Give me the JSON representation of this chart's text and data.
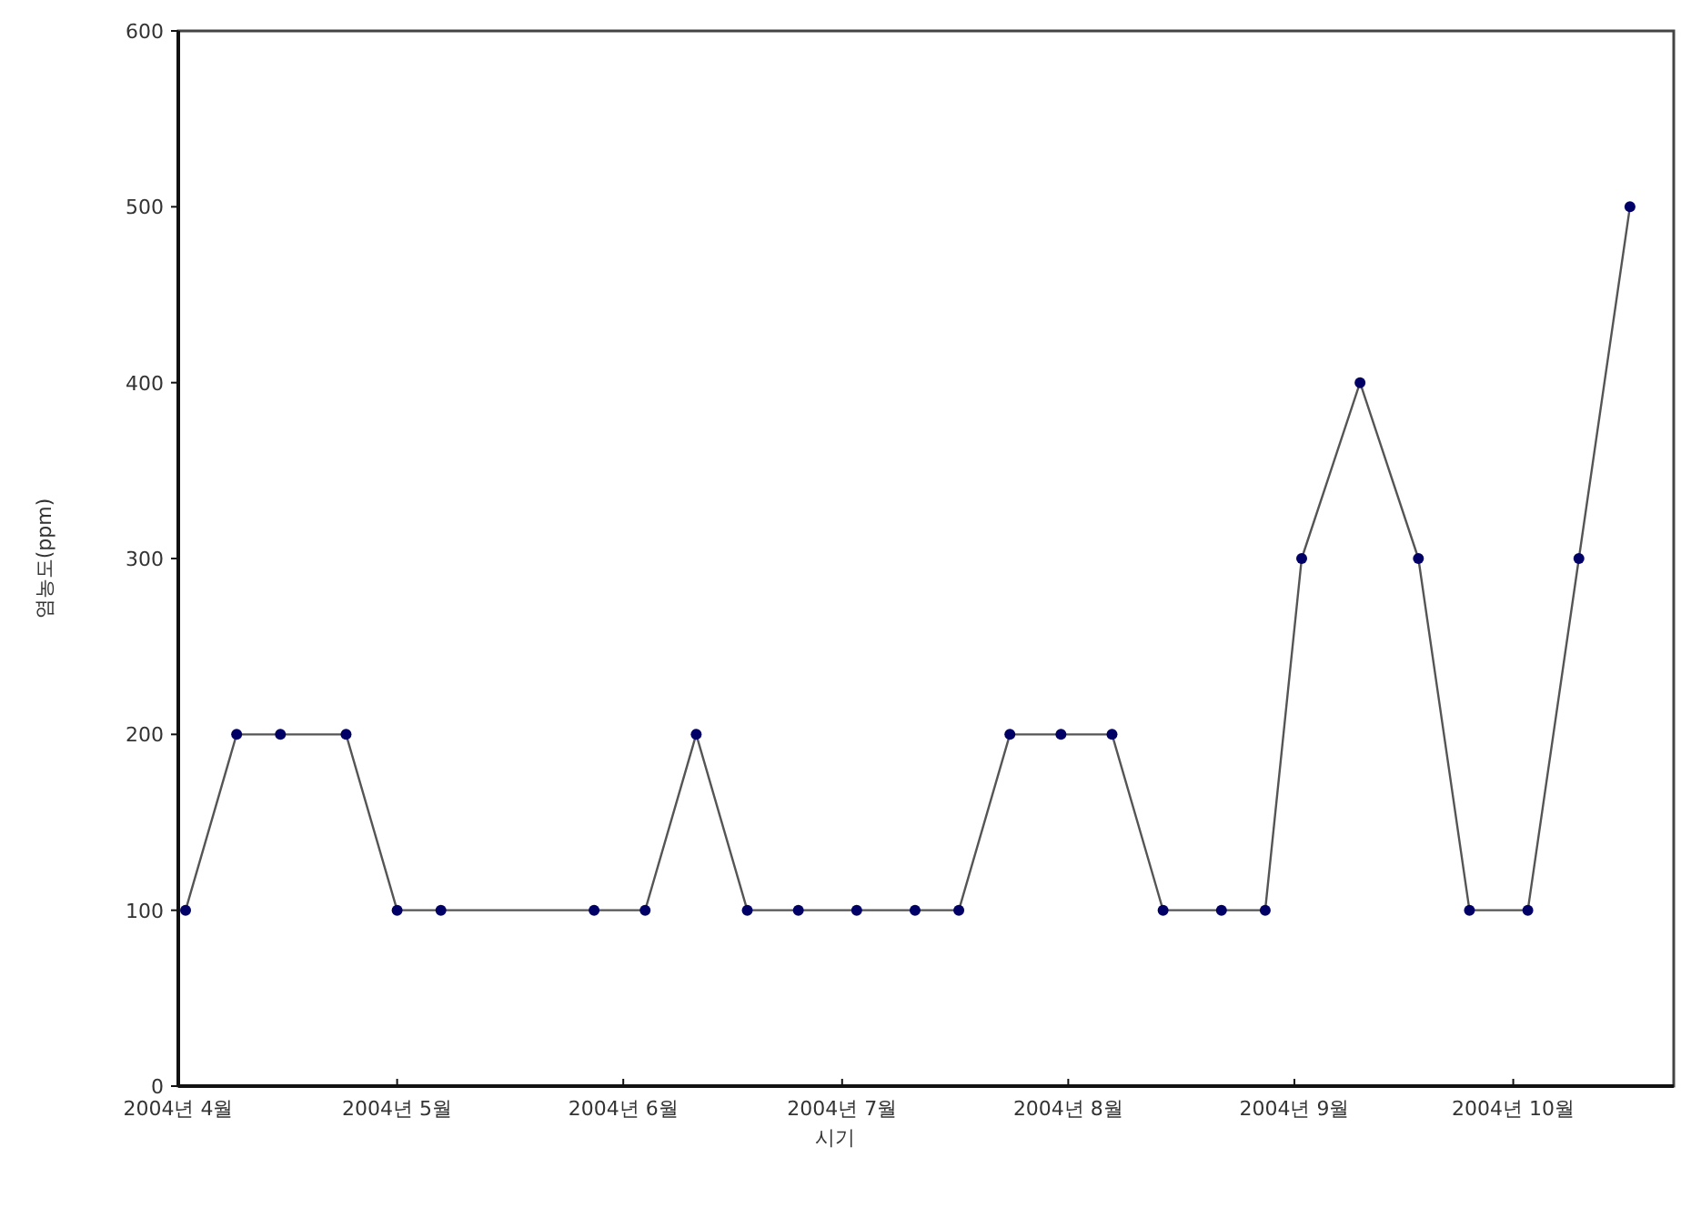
{
  "chart_data": {
    "type": "line",
    "xlabel": "시기",
    "ylabel": "염농도(ppm)",
    "x": [
      "2004-04-02",
      "2004-04-09",
      "2004-04-15",
      "2004-04-24",
      "2004-05-01",
      "2004-05-07",
      "2004-05-28",
      "2004-06-04",
      "2004-06-11",
      "2004-06-18",
      "2004-06-25",
      "2004-07-03",
      "2004-07-11",
      "2004-07-17",
      "2004-07-24",
      "2004-07-31",
      "2004-08-07",
      "2004-08-14",
      "2004-08-22",
      "2004-08-28",
      "2004-09-02",
      "2004-09-10",
      "2004-09-18",
      "2004-09-25",
      "2004-10-03",
      "2004-10-10",
      "2004-10-17"
    ],
    "series": [
      {
        "color": "#000066",
        "values": [
          100,
          200,
          200,
          200,
          100,
          100,
          100,
          100,
          200,
          100,
          100,
          100,
          100,
          100,
          200,
          200,
          200,
          100,
          100,
          100,
          300,
          400,
          300,
          100,
          100,
          300,
          500
        ]
      }
    ],
    "xlim": [
      "2004-04-01",
      "2004-10-23"
    ],
    "xticks": [
      {
        "value": "2004-04-01",
        "label": "2004년 4월"
      },
      {
        "value": "2004-05-01",
        "label": "2004년 5월"
      },
      {
        "value": "2004-06-01",
        "label": "2004년 6월"
      },
      {
        "value": "2004-07-01",
        "label": "2004년 7월"
      },
      {
        "value": "2004-08-01",
        "label": "2004년 8월"
      },
      {
        "value": "2004-09-01",
        "label": "2004년 9월"
      },
      {
        "value": "2004-10-01",
        "label": "2004년 10월"
      }
    ],
    "ylim": [
      0,
      600
    ],
    "yticks": [
      0,
      100,
      200,
      300,
      400,
      500,
      600
    ],
    "grid": false,
    "marker": "circle",
    "line_style": "solid"
  }
}
